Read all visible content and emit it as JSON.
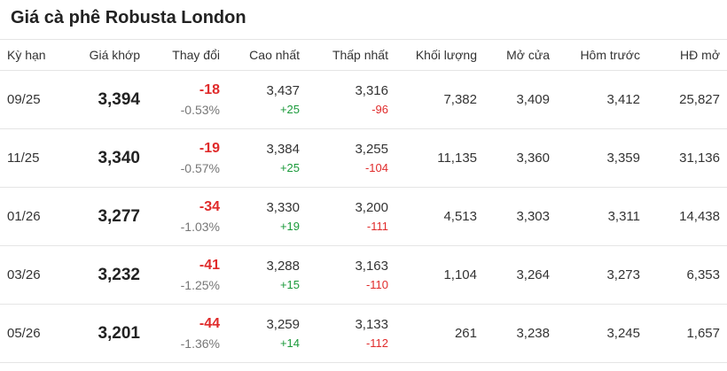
{
  "title": "Giá cà phê Robusta London",
  "headers": {
    "term": "Kỳ hạn",
    "price": "Giá khớp",
    "change": "Thay đổi",
    "high": "Cao nhất",
    "low": "Thấp nhất",
    "volume": "Khối lượng",
    "open": "Mở cửa",
    "prev": "Hôm trước",
    "oi": "HĐ mở"
  },
  "colors": {
    "up": "#1a9a3a",
    "down": "#e02b2b",
    "border": "#e5e5e5"
  },
  "rows": [
    {
      "term": "09/25",
      "price": "3,394",
      "change": "-18",
      "change_pct": "-0.53%",
      "high": "3,437",
      "high_diff": "+25",
      "low": "3,316",
      "low_diff": "-96",
      "volume": "7,382",
      "open": "3,409",
      "prev": "3,412",
      "oi": "25,827"
    },
    {
      "term": "11/25",
      "price": "3,340",
      "change": "-19",
      "change_pct": "-0.57%",
      "high": "3,384",
      "high_diff": "+25",
      "low": "3,255",
      "low_diff": "-104",
      "volume": "11,135",
      "open": "3,360",
      "prev": "3,359",
      "oi": "31,136"
    },
    {
      "term": "01/26",
      "price": "3,277",
      "change": "-34",
      "change_pct": "-1.03%",
      "high": "3,330",
      "high_diff": "+19",
      "low": "3,200",
      "low_diff": "-111",
      "volume": "4,513",
      "open": "3,303",
      "prev": "3,311",
      "oi": "14,438"
    },
    {
      "term": "03/26",
      "price": "3,232",
      "change": "-41",
      "change_pct": "-1.25%",
      "high": "3,288",
      "high_diff": "+15",
      "low": "3,163",
      "low_diff": "-110",
      "volume": "1,104",
      "open": "3,264",
      "prev": "3,273",
      "oi": "6,353"
    },
    {
      "term": "05/26",
      "price": "3,201",
      "change": "-44",
      "change_pct": "-1.36%",
      "high": "3,259",
      "high_diff": "+14",
      "low": "3,133",
      "low_diff": "-112",
      "volume": "261",
      "open": "3,238",
      "prev": "3,245",
      "oi": "1,657"
    }
  ]
}
